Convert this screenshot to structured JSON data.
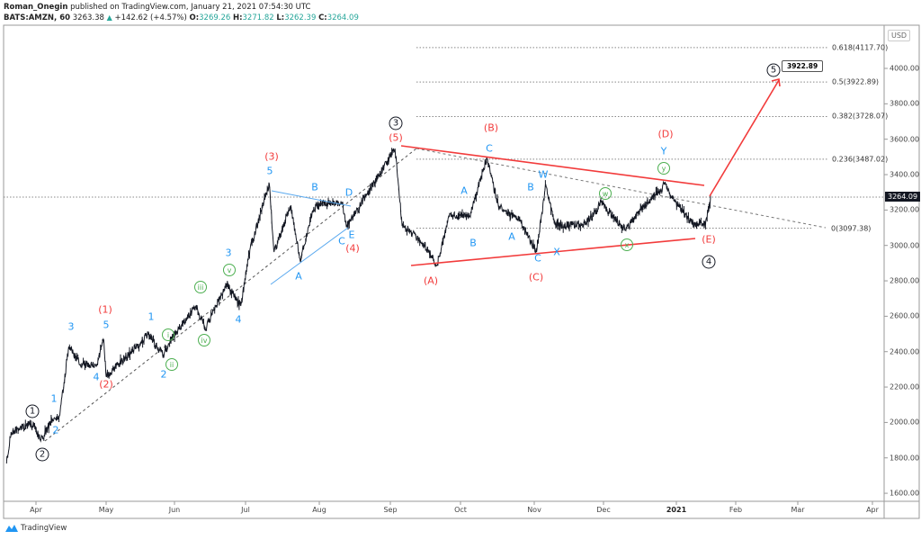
{
  "header": {
    "author": "Roman_Onegin",
    "published": "published on TradingView.com, January 21, 2021 07:54:30 UTC",
    "symbol": "BATS:AMZN, 60",
    "last": "3263.38",
    "change": "+142.62 (+4.57%)",
    "o_label": "O:",
    "o": "3269.26",
    "h_label": "H:",
    "h": "3271.82",
    "l_label": "L:",
    "l": "3262.39",
    "c_label": "C:",
    "c": "3264.09"
  },
  "currency": "USD",
  "last_price_tag": "3264.09",
  "target_callout": "3922.89",
  "brand": "TradingView",
  "colors": {
    "up": "#26a69a",
    "red": "#f23b3b",
    "blue": "#2196f3",
    "green": "#4caf50",
    "black": "#131722"
  },
  "chart_data": {
    "type": "line",
    "title": "",
    "price_ticks": [
      "4000.00",
      "3800.00",
      "3600.00",
      "3400.00",
      "3200.00",
      "3000.00",
      "2800.00",
      "2600.00",
      "2400.00",
      "2200.00",
      "2000.00",
      "1800.00",
      "1600.00"
    ],
    "time_ticks": [
      "Apr",
      "May",
      "Jun",
      "Jul",
      "Aug",
      "Sep",
      "Oct",
      "Nov",
      "Dec",
      "2021",
      "Feb",
      "Mar",
      "Apr"
    ],
    "ylim": [
      1560,
      4230
    ],
    "price_pivots": [
      [
        "2020-03-19",
        1768
      ],
      [
        "2020-03-21",
        1946
      ],
      [
        "2020-03-31",
        1997
      ],
      [
        "2020-04-03",
        1895
      ],
      [
        "2020-04-08",
        2022
      ],
      [
        "2020-04-11",
        2038
      ],
      [
        "2020-04-13",
        2225
      ],
      [
        "2020-04-15",
        2429
      ],
      [
        "2020-04-20",
        2327
      ],
      [
        "2020-04-27",
        2327
      ],
      [
        "2020-04-30",
        2465
      ],
      [
        "2020-05-01",
        2260
      ],
      [
        "2020-05-20",
        2495
      ],
      [
        "2020-05-27",
        2378
      ],
      [
        "2020-05-30",
        2460
      ],
      [
        "2020-06-10",
        2658
      ],
      [
        "2020-06-14",
        2530
      ],
      [
        "2020-06-23",
        2785
      ],
      [
        "2020-06-29",
        2658
      ],
      [
        "2020-07-03",
        2988
      ],
      [
        "2020-07-11",
        3344
      ],
      [
        "2020-07-13",
        2963
      ],
      [
        "2020-07-20",
        3227
      ],
      [
        "2020-07-24",
        2912
      ],
      [
        "2020-07-29",
        3190
      ],
      [
        "2020-08-01",
        3240
      ],
      [
        "2020-08-11",
        3240
      ],
      [
        "2020-08-13",
        3110
      ],
      [
        "2020-08-22",
        3290
      ],
      [
        "2020-09-03",
        3547
      ],
      [
        "2020-09-06",
        3115
      ],
      [
        "2020-09-15",
        3014
      ],
      [
        "2020-09-21",
        2887
      ],
      [
        "2020-09-26",
        3166
      ],
      [
        "2020-10-05",
        3166
      ],
      [
        "2020-10-12",
        3497
      ],
      [
        "2020-10-17",
        3217
      ],
      [
        "2020-10-26",
        3140
      ],
      [
        "2020-11-02",
        2963
      ],
      [
        "2020-11-06",
        3344
      ],
      [
        "2020-11-10",
        3115
      ],
      [
        "2020-11-23",
        3115
      ],
      [
        "2020-11-30",
        3243
      ],
      [
        "2020-12-10",
        3090
      ],
      [
        "2020-12-18",
        3217
      ],
      [
        "2020-12-27",
        3344
      ],
      [
        "2020-12-29",
        3293
      ],
      [
        "2021-01-09",
        3125
      ],
      [
        "2021-01-16",
        3115
      ],
      [
        "2021-01-19",
        3264
      ]
    ],
    "last_price": 3264.09,
    "fib_levels": [
      {
        "ratio": "0.618",
        "price": 4117.7,
        "label": "0.618(4117.70)"
      },
      {
        "ratio": "0.5",
        "price": 3922.89,
        "label": "0.5(3922.89)"
      },
      {
        "ratio": "0.382",
        "price": 3728.07,
        "label": "0.382(3728.07)"
      },
      {
        "ratio": "0.236",
        "price": 3487.02,
        "label": "0.236(3487.02)"
      },
      {
        "ratio": "0",
        "price": 3097.38,
        "label": "0(3097.38)"
      }
    ],
    "annotations": [
      {
        "text": "1",
        "color": "black",
        "style": "circle"
      },
      {
        "text": "2",
        "color": "black",
        "style": "circle"
      },
      {
        "text": "3",
        "color": "black",
        "style": "circle"
      },
      {
        "text": "4",
        "color": "black",
        "style": "circle"
      },
      {
        "text": "5",
        "color": "black",
        "style": "circle"
      },
      {
        "text": "(1)",
        "color": "red"
      },
      {
        "text": "(2)",
        "color": "red"
      },
      {
        "text": "(3)",
        "color": "red"
      },
      {
        "text": "(4)",
        "color": "red"
      },
      {
        "text": "(5)",
        "color": "red"
      },
      {
        "text": "(A)",
        "color": "red"
      },
      {
        "text": "(B)",
        "color": "red"
      },
      {
        "text": "(C)",
        "color": "red"
      },
      {
        "text": "(D)",
        "color": "red"
      },
      {
        "text": "(E)",
        "color": "red"
      },
      {
        "text": "3",
        "color": "blue"
      },
      {
        "text": "5",
        "color": "blue"
      },
      {
        "text": "1",
        "color": "blue"
      },
      {
        "text": "2",
        "color": "blue"
      },
      {
        "text": "4",
        "color": "blue"
      },
      {
        "text": "1",
        "color": "blue"
      },
      {
        "text": "2",
        "color": "blue"
      },
      {
        "text": "3",
        "color": "blue"
      },
      {
        "text": "4",
        "color": "blue"
      },
      {
        "text": "5",
        "color": "blue"
      },
      {
        "text": "B",
        "color": "blue"
      },
      {
        "text": "D",
        "color": "blue"
      },
      {
        "text": "A",
        "color": "blue"
      },
      {
        "text": "C",
        "color": "blue"
      },
      {
        "text": "E",
        "color": "blue"
      },
      {
        "text": "A",
        "color": "blue"
      },
      {
        "text": "B",
        "color": "blue"
      },
      {
        "text": "C",
        "color": "blue"
      },
      {
        "text": "B",
        "color": "blue"
      },
      {
        "text": "A",
        "color": "blue"
      },
      {
        "text": "W",
        "color": "blue"
      },
      {
        "text": "C",
        "color": "blue"
      },
      {
        "text": "X",
        "color": "blue"
      },
      {
        "text": "Y",
        "color": "blue"
      },
      {
        "text": "i",
        "color": "green",
        "style": "circle"
      },
      {
        "text": "ii",
        "color": "green",
        "style": "circle"
      },
      {
        "text": "iii",
        "color": "green",
        "style": "circle"
      },
      {
        "text": "iv",
        "color": "green",
        "style": "circle"
      },
      {
        "text": "v",
        "color": "green",
        "style": "circle"
      },
      {
        "text": "w",
        "color": "green",
        "style": "circle"
      },
      {
        "text": "x",
        "color": "green",
        "style": "circle"
      },
      {
        "text": "y",
        "color": "green",
        "style": "circle"
      }
    ]
  }
}
